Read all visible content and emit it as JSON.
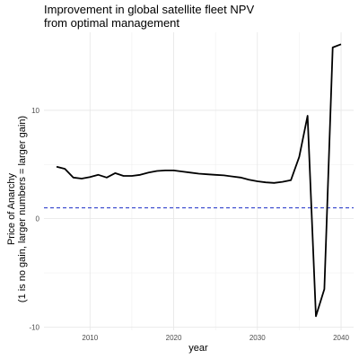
{
  "chart_data": {
    "type": "line",
    "title_lines": [
      "Improvement in global satellite fleet NPV",
      "from optimal management"
    ],
    "xlabel": "year",
    "ylabel_lines": [
      "Price of Anarchy",
      "(1 is no gain, larger numbers = larger gain)"
    ],
    "xlim": [
      2004.5,
      2041.5
    ],
    "ylim": [
      -10.3,
      17.2
    ],
    "x_ticks": [
      2010,
      2020,
      2030,
      2040
    ],
    "y_ticks": [
      -10,
      0,
      10
    ],
    "grid": true,
    "reference_line": {
      "y": 1,
      "color": "#3344cc",
      "style": "dashed"
    },
    "line_color": "#000000",
    "series": [
      {
        "x": [
          2006,
          2007,
          2008,
          2009,
          2010,
          2011,
          2012,
          2013,
          2014,
          2015,
          2016,
          2017,
          2018,
          2019,
          2020,
          2021,
          2022,
          2023,
          2024,
          2025,
          2026,
          2027,
          2028,
          2029,
          2030,
          2031,
          2032,
          2033,
          2034,
          2035,
          2036,
          2037,
          2038,
          2039,
          2040
        ],
        "y": [
          4.8,
          4.6,
          3.8,
          3.7,
          3.85,
          4.05,
          3.8,
          4.2,
          3.95,
          3.95,
          4.05,
          4.25,
          4.4,
          4.45,
          4.45,
          4.35,
          4.25,
          4.15,
          4.1,
          4.05,
          4.0,
          3.9,
          3.8,
          3.6,
          3.45,
          3.35,
          3.3,
          3.4,
          3.55,
          5.7,
          9.5,
          -9.0,
          -6.5,
          15.8,
          16.1
        ]
      }
    ]
  }
}
